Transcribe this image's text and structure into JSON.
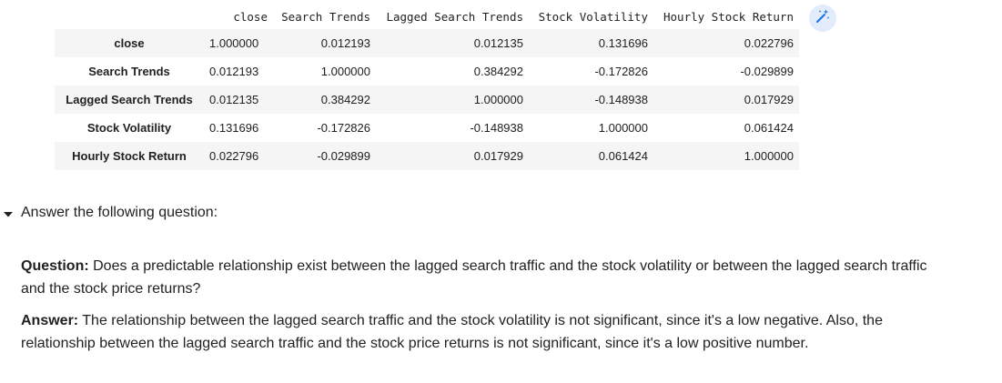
{
  "dataframe": {
    "columns": [
      "close",
      "Search Trends",
      "Lagged Search Trends",
      "Stock Volatility",
      "Hourly Stock Return"
    ],
    "rows": [
      {
        "label": "close",
        "values": [
          "1.000000",
          "0.012193",
          "0.012135",
          "0.131696",
          "0.022796"
        ]
      },
      {
        "label": "Search Trends",
        "values": [
          "0.012193",
          "1.000000",
          "0.384292",
          "-0.172826",
          "-0.029899"
        ]
      },
      {
        "label": "Lagged Search Trends",
        "values": [
          "0.012135",
          "0.384292",
          "1.000000",
          "-0.148938",
          "0.017929"
        ]
      },
      {
        "label": "Stock Volatility",
        "values": [
          "0.131696",
          "-0.172826",
          "-0.148938",
          "1.000000",
          "0.061424"
        ]
      },
      {
        "label": "Hourly Stock Return",
        "values": [
          "0.022796",
          "-0.029899",
          "0.017929",
          "0.061424",
          "1.000000"
        ]
      }
    ]
  },
  "toolbar": {
    "wand_icon": "magic-wand-icon",
    "wand_bg": "#e3ecfa",
    "wand_color": "#1a73e8"
  },
  "text_cell": {
    "toggle_icon": "caret-down-icon",
    "heading": "Answer the following question:",
    "question_label": "Question:",
    "question_text": " Does a predictable relationship exist between the lagged search traffic and the stock volatility or between the lagged search traffic and the stock price returns?",
    "answer_label": "Answer:",
    "answer_text": " The relationship between the lagged search traffic and the stock volatility is not significant, since it's a low negative. Also, the relationship between the lagged search traffic and the stock price returns is not significant, since it's a low positive number."
  }
}
